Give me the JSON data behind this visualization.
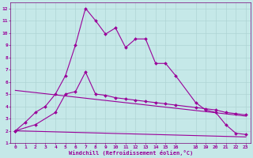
{
  "xlabel": "Windchill (Refroidissement éolien,°C)",
  "background_color": "#c5e8e8",
  "grid_color": "#afd4d4",
  "line_color": "#990099",
  "spine_color": "#770077",
  "xlim": [
    -0.5,
    23.5
  ],
  "ylim": [
    1,
    12.5
  ],
  "xticks": [
    0,
    1,
    2,
    3,
    4,
    5,
    6,
    7,
    8,
    9,
    10,
    11,
    12,
    13,
    14,
    15,
    16,
    18,
    19,
    20,
    21,
    22,
    23
  ],
  "yticks": [
    1,
    2,
    3,
    4,
    5,
    6,
    7,
    8,
    9,
    10,
    11,
    12
  ],
  "series1_x": [
    0,
    1,
    2,
    3,
    4,
    5,
    6,
    7,
    8,
    9,
    10,
    11,
    12,
    13,
    14,
    15,
    16,
    18,
    19,
    20,
    21,
    22,
    23
  ],
  "series1_y": [
    2,
    2.7,
    3.5,
    4,
    5,
    6.5,
    9,
    12,
    11,
    9.9,
    10.4,
    8.8,
    9.5,
    9.5,
    7.5,
    7.5,
    6.5,
    4.3,
    3.7,
    3.5,
    2.5,
    1.8,
    1.7
  ],
  "series2_x": [
    0,
    2,
    4,
    5,
    6,
    7,
    8,
    9,
    10,
    11,
    12,
    13,
    14,
    15,
    16,
    18,
    19,
    20,
    21,
    22,
    23
  ],
  "series2_y": [
    2,
    2.5,
    3.5,
    5,
    5.2,
    6.8,
    5,
    4.9,
    4.7,
    4.6,
    4.5,
    4.4,
    4.3,
    4.2,
    4.1,
    3.9,
    3.8,
    3.7,
    3.5,
    3.4,
    3.3
  ],
  "series3_x": [
    0,
    23
  ],
  "series3_y": [
    5.3,
    3.2
  ],
  "series4_x": [
    0,
    23
  ],
  "series4_y": [
    2.0,
    1.5
  ],
  "marker_size": 2.0,
  "linewidth": 0.8,
  "tick_fontsize": 4.5,
  "label_fontsize": 5.0
}
